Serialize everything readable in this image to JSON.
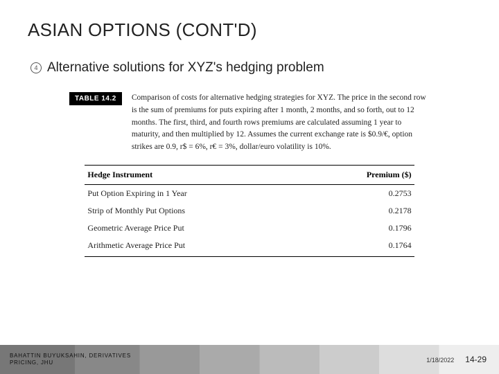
{
  "title": "ASIAN OPTIONS (CONT'D)",
  "bullet": {
    "marker": "4",
    "text": "Alternative solutions for XYZ's hedging problem"
  },
  "figure": {
    "table_tag": "TABLE 14.2",
    "caption": "Comparison of costs for alternative hedging strategies for XYZ. The price in the second row is the sum of premiums for puts expiring after 1 month, 2 months, and so forth, out to 12 months. The first, third, and fourth rows premiums are calculated assuming 1 year to maturity, and then multiplied by 12. Assumes the current exchange rate is $0.9/€, option strikes are 0.9, r$ = 6%, r€ = 3%, dollar/euro volatility is 10%.",
    "columns": [
      "Hedge Instrument",
      "Premium ($)"
    ],
    "rows": [
      [
        "Put Option Expiring in 1 Year",
        "0.2753"
      ],
      [
        "Strip of Monthly Put Options",
        "0.2178"
      ],
      [
        "Geometric Average Price Put",
        "0.1796"
      ],
      [
        "Arithmetic Average Price Put",
        "0.1764"
      ]
    ]
  },
  "footer": {
    "author_line1": "BAHATTIN BUYUKSAHIN, DERIVATIVES",
    "author_line2": "PRICING, JHU",
    "date": "1/18/2022",
    "page": "14-29"
  },
  "colors": {
    "text": "#222222",
    "tag_bg": "#000000",
    "tag_fg": "#ffffff",
    "rule": "#000000"
  }
}
